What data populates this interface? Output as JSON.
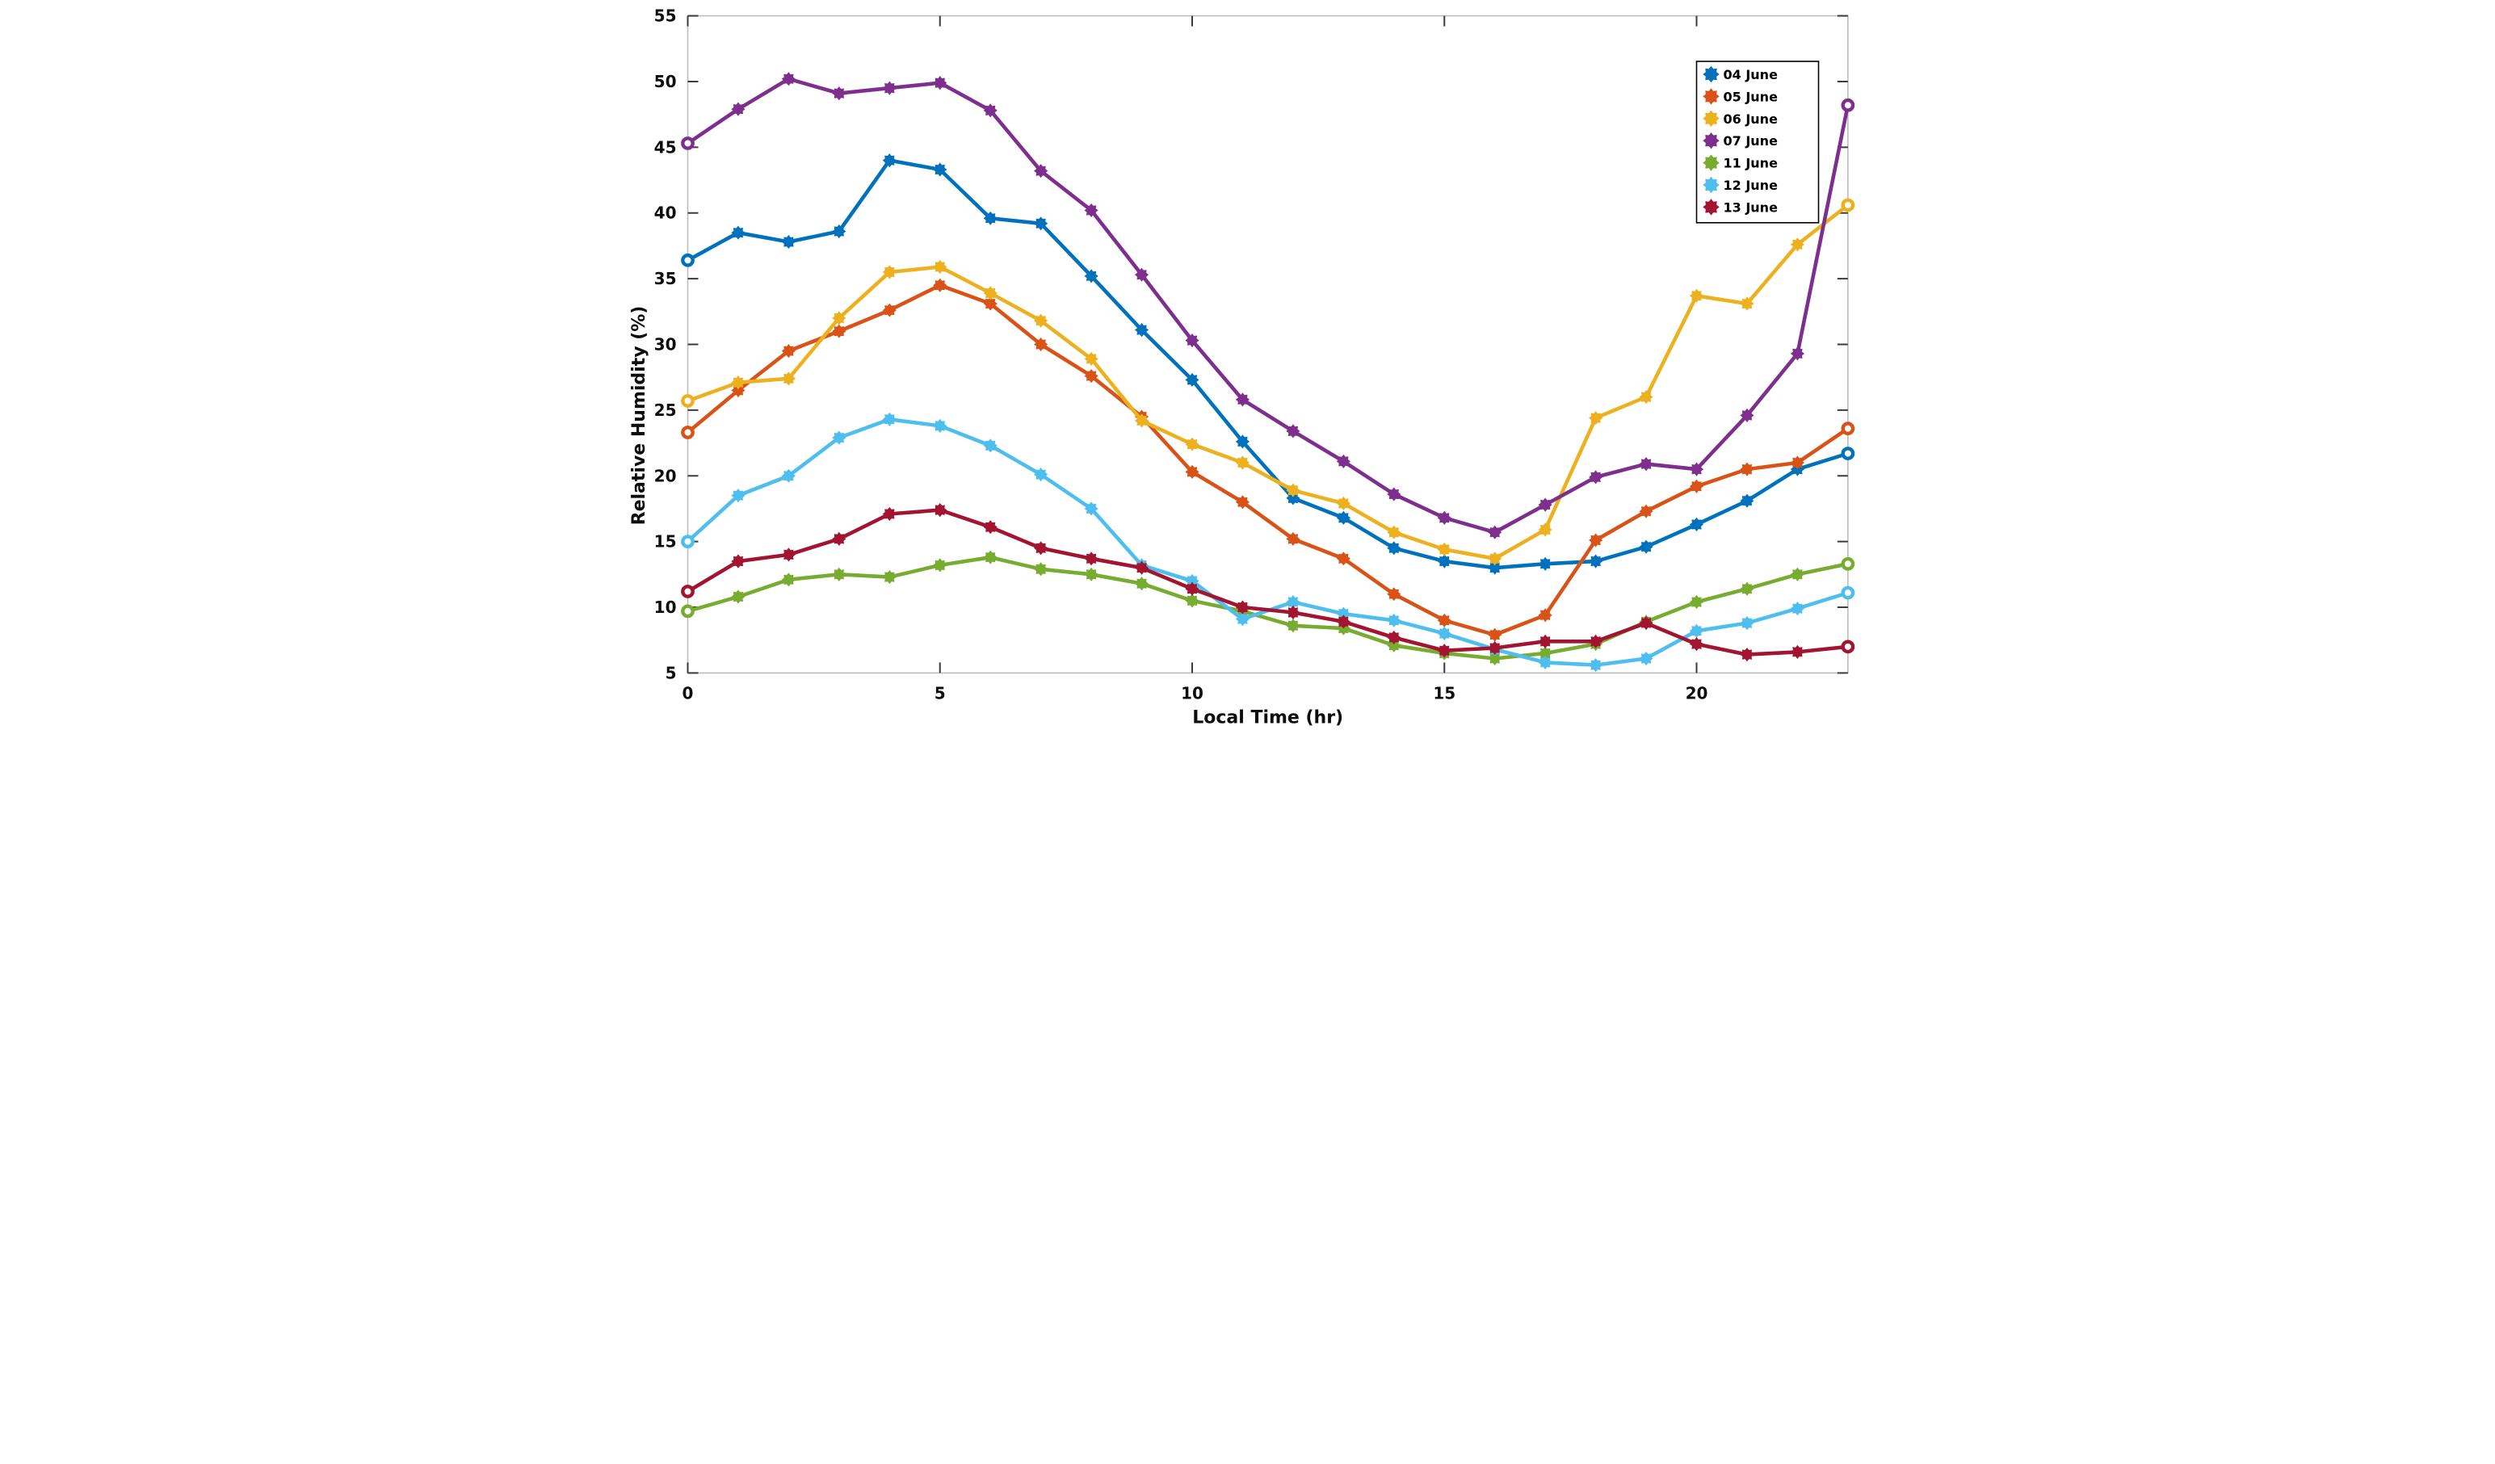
{
  "chart_data": {
    "type": "line",
    "title": "",
    "xlabel": "Local Time (hr)",
    "ylabel": "Relative Humidity (%)",
    "xlim": [
      0,
      23
    ],
    "ylim": [
      5,
      55
    ],
    "xticks": [
      0,
      5,
      10,
      15,
      20
    ],
    "yticks": [
      5,
      10,
      15,
      20,
      25,
      30,
      35,
      40,
      45,
      50,
      55
    ],
    "grid": false,
    "legend_position": "top-right",
    "x": [
      0,
      1,
      2,
      3,
      4,
      5,
      6,
      7,
      8,
      9,
      10,
      11,
      12,
      13,
      14,
      15,
      16,
      17,
      18,
      19,
      20,
      21,
      22,
      23
    ],
    "series": [
      {
        "name": "04 June",
        "color": "#0072BD",
        "values": [
          36.4,
          38.5,
          37.8,
          38.6,
          44.0,
          43.3,
          39.6,
          39.2,
          35.2,
          31.1,
          27.3,
          22.6,
          18.3,
          16.8,
          14.5,
          13.5,
          13.0,
          13.3,
          13.5,
          14.6,
          16.3,
          18.1,
          20.5,
          21.7
        ]
      },
      {
        "name": "05 June",
        "color": "#D95319",
        "values": [
          23.3,
          26.5,
          29.5,
          31.0,
          32.6,
          34.5,
          33.1,
          30.0,
          27.6,
          24.5,
          20.3,
          18.0,
          15.2,
          13.7,
          11.0,
          9.0,
          7.9,
          9.4,
          15.1,
          17.3,
          19.2,
          20.5,
          21.0,
          23.6
        ]
      },
      {
        "name": "06 June",
        "color": "#EDB120",
        "values": [
          25.7,
          27.1,
          27.4,
          32.0,
          35.5,
          35.9,
          33.9,
          31.8,
          28.9,
          24.2,
          22.4,
          21.0,
          18.9,
          17.9,
          15.7,
          14.4,
          13.7,
          15.9,
          24.4,
          26.0,
          33.7,
          33.1,
          37.6,
          40.6
        ]
      },
      {
        "name": "07 June",
        "color": "#7E2F8E",
        "values": [
          45.3,
          47.9,
          50.2,
          49.1,
          49.5,
          49.9,
          47.8,
          43.2,
          40.2,
          35.3,
          30.3,
          25.8,
          23.4,
          21.1,
          18.6,
          16.8,
          15.7,
          17.8,
          19.9,
          20.9,
          20.5,
          24.6,
          29.3,
          48.2
        ]
      },
      {
        "name": "11 June",
        "color": "#77AC30",
        "values": [
          9.7,
          10.8,
          12.1,
          12.5,
          12.3,
          13.2,
          13.8,
          12.9,
          12.5,
          11.8,
          10.5,
          9.7,
          8.6,
          8.4,
          7.1,
          6.5,
          6.1,
          6.5,
          7.2,
          8.9,
          10.4,
          11.4,
          12.5,
          13.3
        ]
      },
      {
        "name": "12 June",
        "color": "#4DBEEE",
        "values": [
          15.0,
          18.5,
          20.0,
          22.9,
          24.3,
          23.8,
          22.3,
          20.1,
          17.5,
          13.2,
          12.0,
          9.1,
          10.4,
          9.5,
          9.0,
          8.0,
          6.8,
          5.8,
          5.6,
          6.1,
          8.2,
          8.8,
          9.9,
          11.1
        ]
      },
      {
        "name": "13 June",
        "color": "#A2142F",
        "values": [
          11.2,
          13.5,
          14.0,
          15.2,
          17.1,
          17.4,
          16.1,
          14.5,
          13.7,
          13.0,
          11.4,
          10.0,
          9.6,
          8.9,
          7.7,
          6.7,
          6.9,
          7.4,
          7.4,
          8.8,
          7.2,
          6.4,
          6.6,
          7.0
        ]
      }
    ],
    "axis_colors": {
      "spine": "#bdbdbd",
      "tick": "#3a3a3a",
      "label": "#0d0d0d"
    }
  }
}
